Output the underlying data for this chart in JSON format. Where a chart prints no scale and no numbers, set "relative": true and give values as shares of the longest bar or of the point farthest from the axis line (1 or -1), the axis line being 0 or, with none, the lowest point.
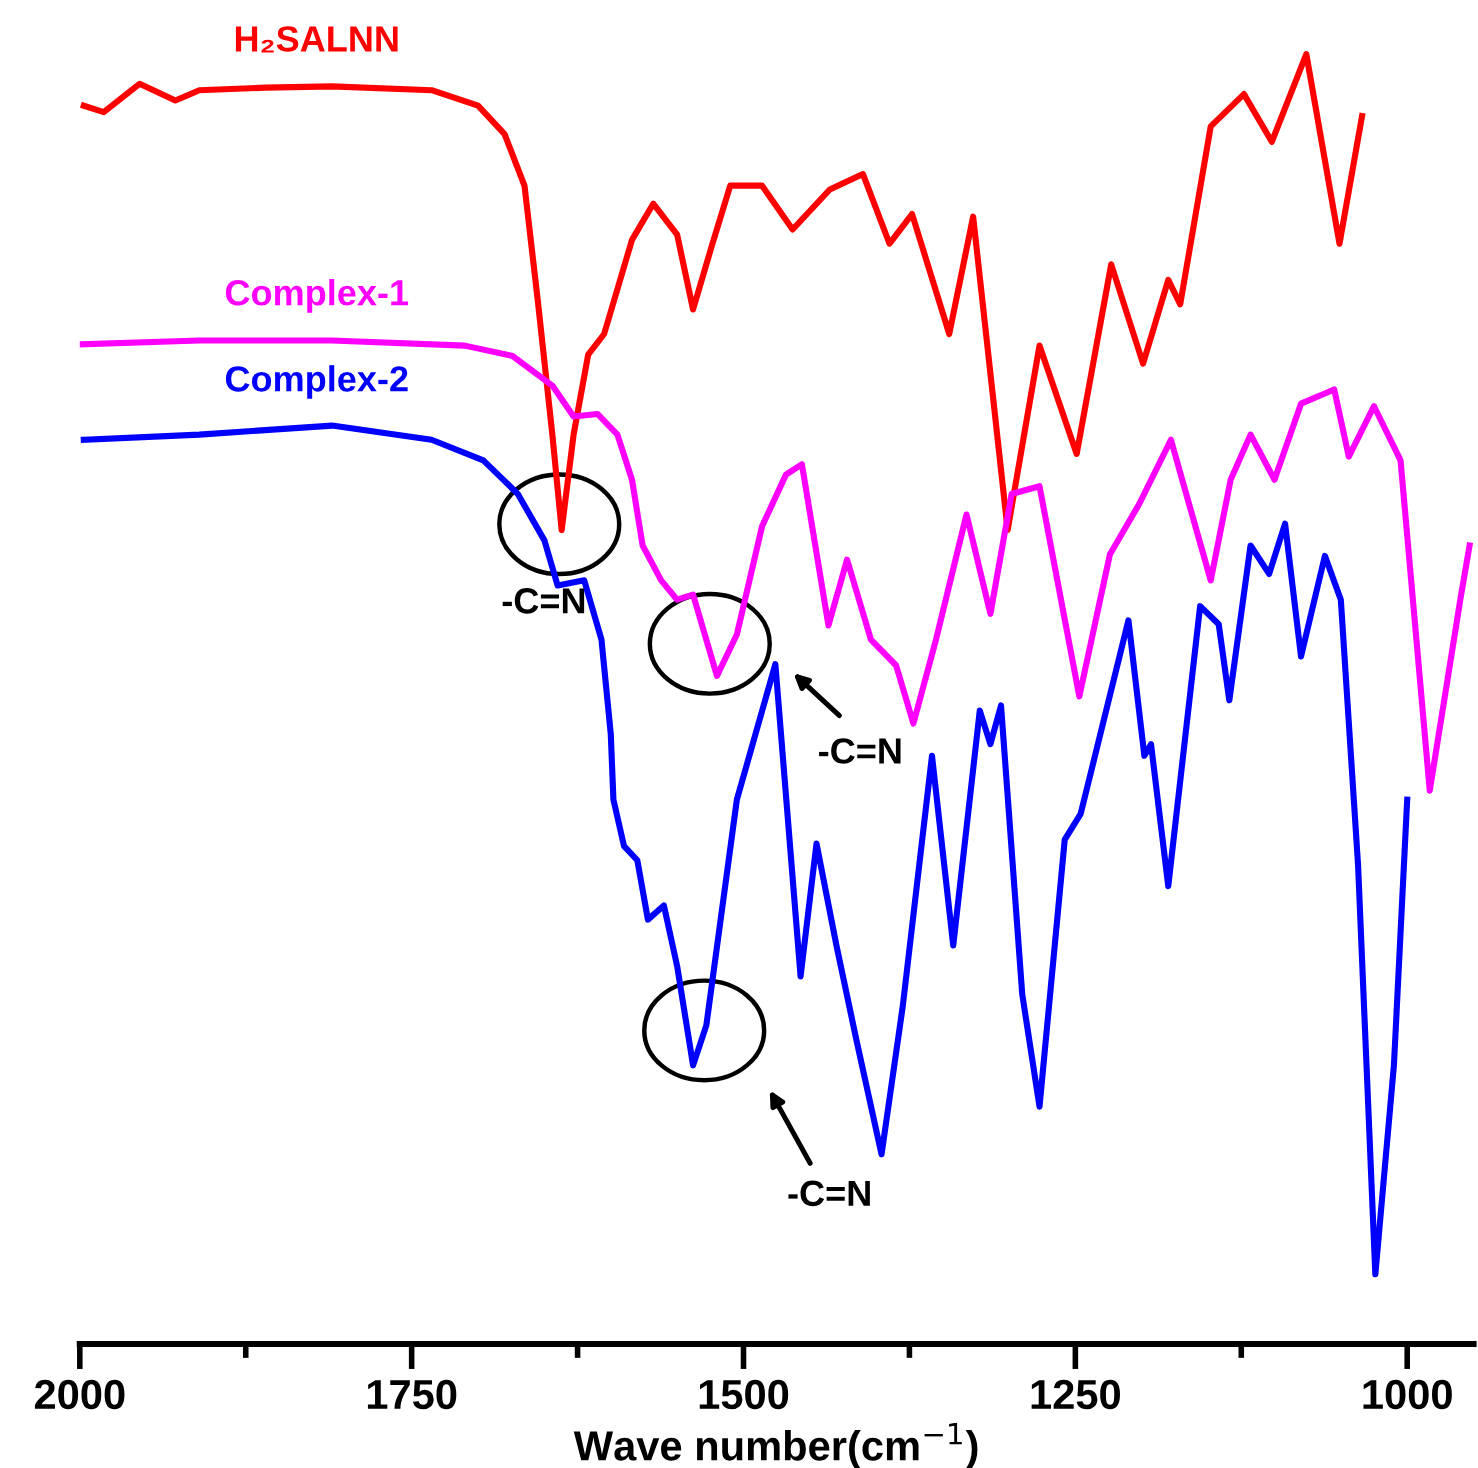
{
  "chart_data": {
    "type": "line",
    "relative": true,
    "xlabel": "Wave number(cm$^{−1}$)",
    "xlim": [
      2000,
      950
    ],
    "xticks": [
      2000,
      {
        "value": 1875,
        "label": null
      },
      1750,
      {
        "value": 1625,
        "label": null
      },
      1500,
      {
        "value": 1375,
        "label": null
      },
      1250,
      {
        "value": 1125,
        "label": null
      },
      1000
    ],
    "grid": false,
    "legend": false,
    "marker": "none",
    "line_style": "solid",
    "series": [
      {
        "name": "H₂SALNN",
        "color": "#ff0000",
        "x": [
          1997,
          1982,
          1955,
          1928,
          1910,
          1860,
          1810,
          1735,
          1700,
          1680,
          1665,
          1655,
          1644,
          1637,
          1628,
          1617,
          1605,
          1584,
          1568,
          1550,
          1538,
          1524,
          1510,
          1486,
          1463,
          1435,
          1410,
          1390,
          1373,
          1345,
          1327,
          1301,
          1277,
          1249,
          1223,
          1199,
          1180,
          1171,
          1148,
          1123,
          1102,
          1076,
          1051,
          1034
        ],
        "values": [
          0.96,
          0.955,
          0.977,
          0.964,
          0.972,
          0.974,
          0.975,
          0.972,
          0.96,
          0.938,
          0.898,
          0.809,
          0.705,
          0.631,
          0.705,
          0.767,
          0.783,
          0.856,
          0.884,
          0.86,
          0.802,
          0.851,
          0.898,
          0.898,
          0.864,
          0.895,
          0.907,
          0.853,
          0.876,
          0.783,
          0.874,
          0.631,
          0.774,
          0.69,
          0.837,
          0.76,
          0.825,
          0.806,
          0.944,
          0.969,
          0.932,
          1.0,
          0.853,
          0.952
        ]
      },
      {
        "name": "Complex-1",
        "color": "#ff00ff",
        "x": [
          2000,
          1910,
          1810,
          1710,
          1674,
          1644,
          1628,
          1610,
          1595,
          1584,
          1576,
          1562,
          1550,
          1538,
          1520,
          1505,
          1486,
          1468,
          1456,
          1436,
          1422,
          1404,
          1385,
          1372,
          1355,
          1332,
          1314,
          1298,
          1277,
          1247,
          1224,
          1202,
          1178,
          1164,
          1148,
          1133,
          1118,
          1100,
          1080,
          1055,
          1044,
          1025,
          1005,
          983,
          960,
          953
        ],
        "values": [
          0.775,
          0.778,
          0.778,
          0.774,
          0.766,
          0.743,
          0.719,
          0.721,
          0.705,
          0.67,
          0.619,
          0.592,
          0.577,
          0.581,
          0.518,
          0.55,
          0.634,
          0.674,
          0.682,
          0.557,
          0.608,
          0.546,
          0.526,
          0.481,
          0.546,
          0.643,
          0.566,
          0.659,
          0.665,
          0.502,
          0.612,
          0.651,
          0.701,
          0.65,
          0.592,
          0.67,
          0.705,
          0.67,
          0.729,
          0.74,
          0.688,
          0.727,
          0.685,
          0.429,
          0.577,
          0.619
        ]
      },
      {
        "name": "Complex-2",
        "color": "#0000ff",
        "x": [
          1997,
          1910,
          1810,
          1735,
          1696,
          1670,
          1650,
          1640,
          1620,
          1607,
          1600,
          1598,
          1590,
          1580,
          1572,
          1560,
          1550,
          1538,
          1528,
          1505,
          1476,
          1457,
          1445,
          1430,
          1415,
          1396,
          1380,
          1358,
          1342,
          1322,
          1314,
          1306,
          1290,
          1277,
          1258,
          1246,
          1210,
          1198,
          1193,
          1180,
          1156,
          1142,
          1134,
          1118,
          1104,
          1092,
          1080,
          1062,
          1050,
          1037,
          1024,
          1010,
          1000
        ],
        "values": [
          0.701,
          0.705,
          0.712,
          0.701,
          0.685,
          0.659,
          0.623,
          0.588,
          0.592,
          0.546,
          0.473,
          0.422,
          0.386,
          0.375,
          0.329,
          0.34,
          0.293,
          0.216,
          0.247,
          0.422,
          0.527,
          0.285,
          0.388,
          0.309,
          0.236,
          0.147,
          0.262,
          0.456,
          0.309,
          0.491,
          0.465,
          0.495,
          0.271,
          0.184,
          0.391,
          0.411,
          0.561,
          0.456,
          0.465,
          0.355,
          0.572,
          0.558,
          0.499,
          0.619,
          0.597,
          0.636,
          0.533,
          0.611,
          0.577,
          0.371,
          0.054,
          0.216,
          0.422
        ]
      }
    ],
    "annotations": [
      "-C=N",
      "-C=N",
      "-C=N"
    ]
  }
}
